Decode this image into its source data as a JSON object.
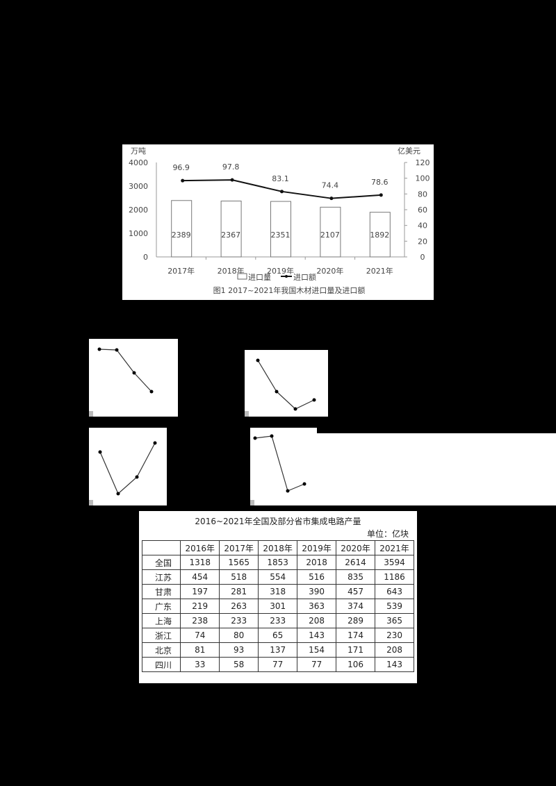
{
  "chart_data": [
    {
      "type": "bar+line",
      "title": "图1  2017~2021年我国木材进口量及进口额",
      "categories": [
        "2017年",
        "2018年",
        "2019年",
        "2020年",
        "2021年"
      ],
      "series": [
        {
          "name": "进口量",
          "type": "bar",
          "axis": "left",
          "unit": "万吨",
          "values": [
            2389,
            2367,
            2351,
            2107,
            1892
          ]
        },
        {
          "name": "进口额",
          "type": "line",
          "axis": "right",
          "unit": "亿美元",
          "values": [
            96.9,
            97.8,
            83.1,
            74.4,
            78.6
          ]
        }
      ],
      "ylabel_left": "万吨",
      "ylabel_right": "亿美元",
      "ylim_left": [
        0,
        4000
      ],
      "ylim_right": [
        0,
        120
      ],
      "yticks_left": [
        0,
        1000,
        2000,
        3000,
        4000
      ],
      "yticks_right": [
        0,
        20,
        40,
        60,
        80,
        100,
        120
      ],
      "legend": [
        "进口量",
        "进口额"
      ],
      "legend_position": "bottom",
      "grid": false
    },
    {
      "type": "line",
      "panel": "A",
      "points": [
        [
          0,
          0.95
        ],
        [
          1,
          0.93
        ],
        [
          2,
          0.6
        ],
        [
          3,
          0.2
        ]
      ]
    },
    {
      "type": "line",
      "panel": "B",
      "points": [
        [
          0,
          0.9
        ],
        [
          1,
          0.4
        ],
        [
          2,
          0.1
        ],
        [
          3,
          0.25
        ]
      ]
    },
    {
      "type": "line",
      "panel": "C",
      "points": [
        [
          0,
          0.7
        ],
        [
          1,
          0.1
        ],
        [
          2,
          0.35
        ],
        [
          3,
          0.85
        ]
      ]
    },
    {
      "type": "line",
      "panel": "D",
      "points": [
        [
          0,
          0.95
        ],
        [
          1,
          0.97
        ],
        [
          2,
          0.1
        ],
        [
          3,
          0.2
        ]
      ]
    },
    {
      "type": "table",
      "title": "2016~2021年全国及部分省市集成电路产量",
      "unit": "单位：亿块",
      "columns": [
        "",
        "2016年",
        "2017年",
        "2018年",
        "2019年",
        "2020年",
        "2021年"
      ],
      "rows": [
        [
          "全国",
          "1318",
          "1565",
          "1853",
          "2018",
          "2614",
          "3594"
        ],
        [
          "江苏",
          "454",
          "518",
          "554",
          "516",
          "835",
          "1186"
        ],
        [
          "甘肃",
          "197",
          "281",
          "318",
          "390",
          "457",
          "643"
        ],
        [
          "广东",
          "219",
          "263",
          "301",
          "363",
          "374",
          "539"
        ],
        [
          "上海",
          "238",
          "233",
          "233",
          "208",
          "289",
          "365"
        ],
        [
          "浙江",
          "74",
          "80",
          "65",
          "143",
          "174",
          "230"
        ],
        [
          "北京",
          "81",
          "93",
          "137",
          "154",
          "171",
          "208"
        ],
        [
          "四川",
          "33",
          "58",
          "77",
          "77",
          "106",
          "143"
        ]
      ]
    }
  ],
  "chart1": {
    "caption": "图1  2017~2021年我国木材进口量及进口额",
    "ylabel_left": "万吨",
    "ylabel_right": "亿美元",
    "legend": {
      "bar": "进口量",
      "line": "进口额"
    }
  },
  "table": {
    "title": "2016~2021年全国及部分省市集成电路产量",
    "unit": "单位：亿块",
    "columns": [
      "",
      "2016年",
      "2017年",
      "2018年",
      "2019年",
      "2020年",
      "2021年"
    ],
    "rows": [
      [
        "全国",
        "1318",
        "1565",
        "1853",
        "2018",
        "2614",
        "3594"
      ],
      [
        "江苏",
        "454",
        "518",
        "554",
        "516",
        "835",
        "1186"
      ],
      [
        "甘肃",
        "197",
        "281",
        "318",
        "390",
        "457",
        "643"
      ],
      [
        "广东",
        "219",
        "263",
        "301",
        "363",
        "374",
        "539"
      ],
      [
        "上海",
        "238",
        "233",
        "233",
        "208",
        "289",
        "365"
      ],
      [
        "浙江",
        "74",
        "80",
        "65",
        "143",
        "174",
        "230"
      ],
      [
        "北京",
        "81",
        "93",
        "137",
        "154",
        "171",
        "208"
      ],
      [
        "四川",
        "33",
        "58",
        "77",
        "77",
        "106",
        "143"
      ]
    ]
  },
  "colors": {
    "background": "#000000",
    "panel": "#ffffff",
    "ink": "#222222",
    "bar_border": "#555555"
  }
}
